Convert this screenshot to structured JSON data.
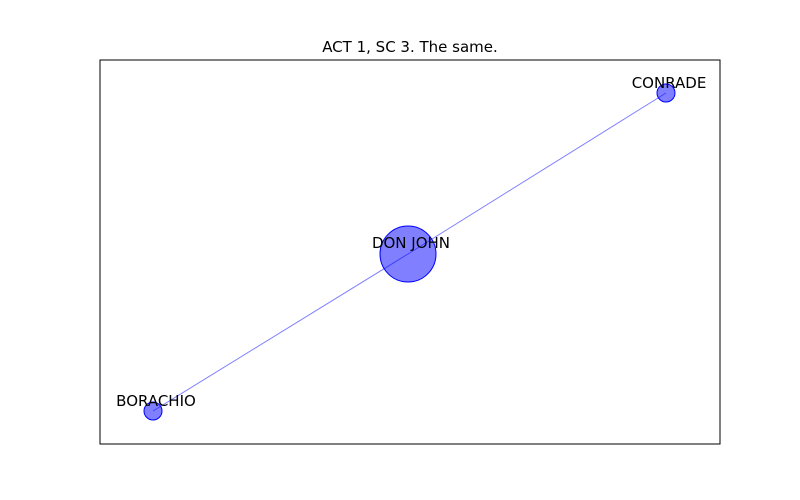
{
  "title": "ACT 1, SC 3. The same.",
  "colors": {
    "node": "#0000ff",
    "edge": "#0000ff",
    "frame": "#000000"
  },
  "nodes": [
    {
      "id": "don-john",
      "label": "DON JOHN",
      "weight": 2
    },
    {
      "id": "conrade",
      "label": "CONRADE",
      "weight": 1
    },
    {
      "id": "borachio",
      "label": "BORACHIO",
      "weight": 1
    }
  ],
  "edges": [
    {
      "source": "don-john",
      "target": "conrade"
    },
    {
      "source": "don-john",
      "target": "borachio"
    }
  ]
}
